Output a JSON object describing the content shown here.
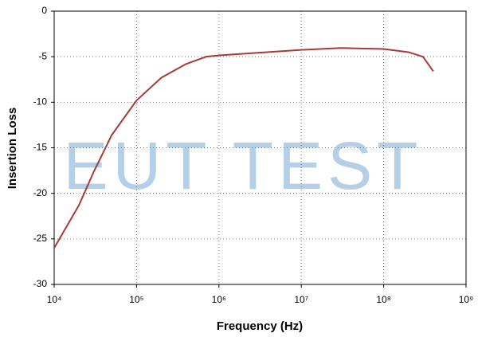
{
  "chart_data": {
    "type": "line",
    "x_label": "Frequency (Hz)",
    "y_label": "Insertion Loss",
    "watermark": "EUT TEST",
    "x": [
      10000,
      20000,
      30000,
      50000,
      100000,
      200000,
      400000,
      700000,
      1000000,
      10000000,
      30000000,
      100000000,
      200000000,
      300000000,
      400000000
    ],
    "values": [
      -26,
      -21.3,
      -17.7,
      -13.6,
      -9.8,
      -7.3,
      -5.8,
      -5.0,
      -4.85,
      -4.25,
      -4.05,
      -4.15,
      -4.5,
      -5.0,
      -6.6
    ],
    "color": "#a83a35",
    "xscale": "log",
    "xlim": [
      10000,
      1000000000
    ],
    "xticks": [
      {
        "value": 10000,
        "label": "10⁴"
      },
      {
        "value": 100000,
        "label": "10⁵"
      },
      {
        "value": 1000000,
        "label": "10⁶"
      },
      {
        "value": 10000000,
        "label": "10⁷"
      },
      {
        "value": 100000000,
        "label": "10⁸"
      },
      {
        "value": 1000000000,
        "label": "10⁹"
      }
    ],
    "ylim": [
      -30,
      0
    ],
    "yticks": [
      0,
      -5,
      -10,
      -15,
      -20,
      -25,
      -30
    ],
    "grid": true
  }
}
